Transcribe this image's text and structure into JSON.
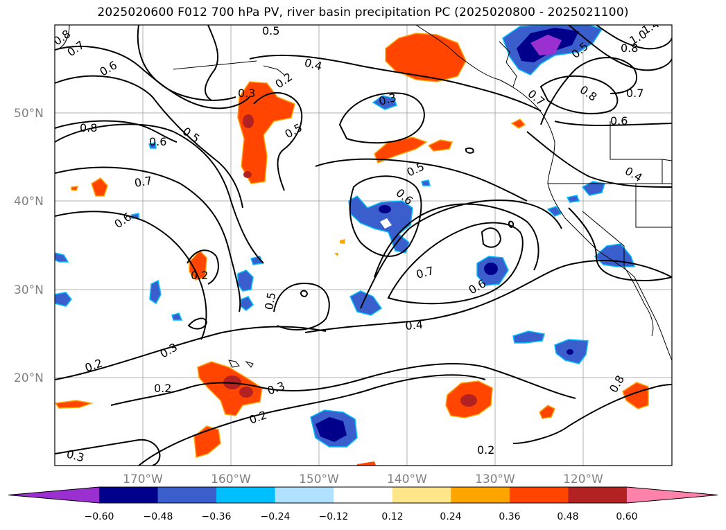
{
  "title": "2025020600 F012 700 hPa PV, river basin precipitation PC (2025020800 - 2025021100)",
  "lat_labels": [
    "50°N",
    "40°N",
    "30°N",
    "20°N"
  ],
  "lon_labels": [
    "170°W",
    "160°W",
    "150°W",
    "140°W",
    "130°W",
    "120°W"
  ],
  "contour_labels": [
    "0.8",
    "0.7",
    "0.6",
    "0.5",
    "0.4",
    "0.3",
    "0.2",
    "0.5",
    "0.3",
    "0.8",
    "0.5",
    "0.7",
    "0.6",
    "0.5",
    "0.6",
    "0.2",
    "0.5",
    "0.7",
    "0.6",
    "0.4",
    "0.3",
    "0.2",
    "0.3",
    "0.2",
    "0.2",
    "0.3",
    "0.2",
    "0.7",
    "0.6",
    "0.4",
    "0.8",
    "0.5",
    "1.0",
    "0.8",
    "1.4",
    "0.7",
    "0.8",
    "0.6"
  ],
  "colorbar": {
    "ticks": [
      "−0.60",
      "−0.48",
      "−0.36",
      "−0.24",
      "−0.12",
      "0.12",
      "0.24",
      "0.36",
      "0.48",
      "0.60"
    ],
    "colors": [
      "#9b30d0",
      "#00008b",
      "#3a5fcd",
      "#00bfff",
      "#b0e2ff",
      "#ffffff",
      "#ffe68a",
      "#ffa500",
      "#ff4500",
      "#b22222",
      "#ff82ab"
    ]
  }
}
